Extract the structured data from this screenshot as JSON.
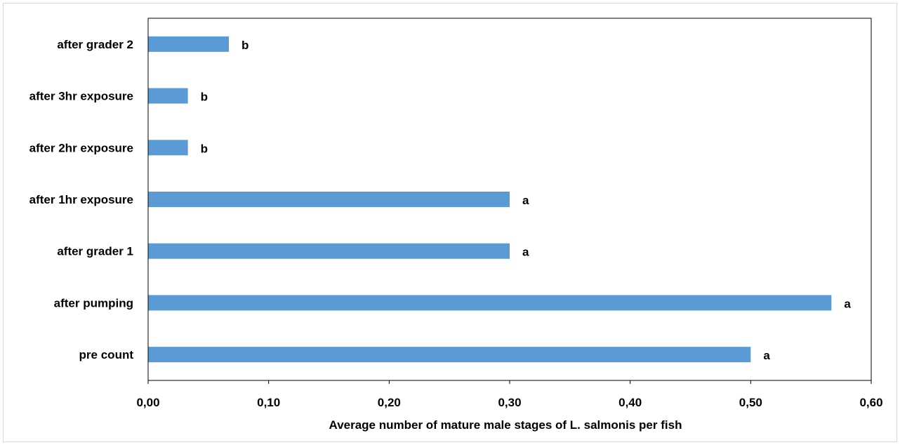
{
  "chart_data": {
    "type": "bar",
    "orientation": "horizontal",
    "title": "",
    "xlabel": "Average number of mature male stages of L. salmonis per fish",
    "ylabel": "",
    "categories": [
      "pre count",
      "after pumping",
      "after grader 1",
      "after 1hr exposure",
      "after 2hr exposure",
      "after 3hr exposure",
      "after grader 2"
    ],
    "values": [
      0.5,
      0.567,
      0.3,
      0.3,
      0.033,
      0.033,
      0.067
    ],
    "data_labels": [
      "a",
      "a",
      "a",
      "a",
      "b",
      "b",
      "b"
    ],
    "xlim": [
      0,
      0.6
    ],
    "xticks": [
      "0,00",
      "0,10",
      "0,20",
      "0,30",
      "0,40",
      "0,50",
      "0,60"
    ],
    "grid": false,
    "legend": "none",
    "colors": {
      "bar": "#5b9bd5",
      "axis": "#000000",
      "frame": "#d9d9d9"
    }
  }
}
